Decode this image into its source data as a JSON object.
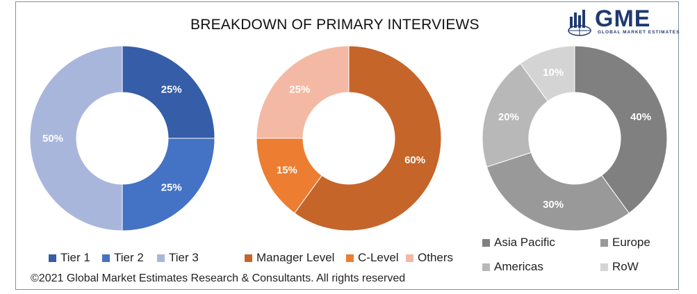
{
  "title": "BREAKDOWN OF PRIMARY INTERVIEWS",
  "logo": {
    "name": "GME",
    "tagline": "GLOBAL MARKET ESTIMATES"
  },
  "copyright": "©2021 Global Market Estimates Research & Consultants. All rights reserved",
  "chart_data": [
    {
      "type": "pie",
      "subtype": "donut",
      "categories": [
        "Tier 1",
        "Tier 2",
        "Tier 3"
      ],
      "values": [
        25,
        25,
        50
      ],
      "labels": [
        "25%",
        "25%",
        "50%"
      ],
      "colors": [
        "#355da8",
        "#4472c4",
        "#a9b6dc"
      ],
      "legend_position": "bottom"
    },
    {
      "type": "pie",
      "subtype": "donut",
      "categories": [
        "Manager Level",
        "C-Level",
        "Others"
      ],
      "values": [
        60,
        15,
        25
      ],
      "labels": [
        "60%",
        "15%",
        "25%"
      ],
      "colors": [
        "#c5652a",
        "#ed7d31",
        "#f4b9a4"
      ],
      "legend_position": "bottom"
    },
    {
      "type": "pie",
      "subtype": "donut",
      "categories": [
        "Asia Pacific",
        "Europe",
        "Americas",
        "RoW"
      ],
      "values": [
        40,
        30,
        20,
        10
      ],
      "labels": [
        "40%",
        "30%",
        "20%",
        "10%"
      ],
      "colors": [
        "#808080",
        "#999999",
        "#b8b8b8",
        "#d4d4d4"
      ],
      "legend_position": "bottom"
    }
  ]
}
